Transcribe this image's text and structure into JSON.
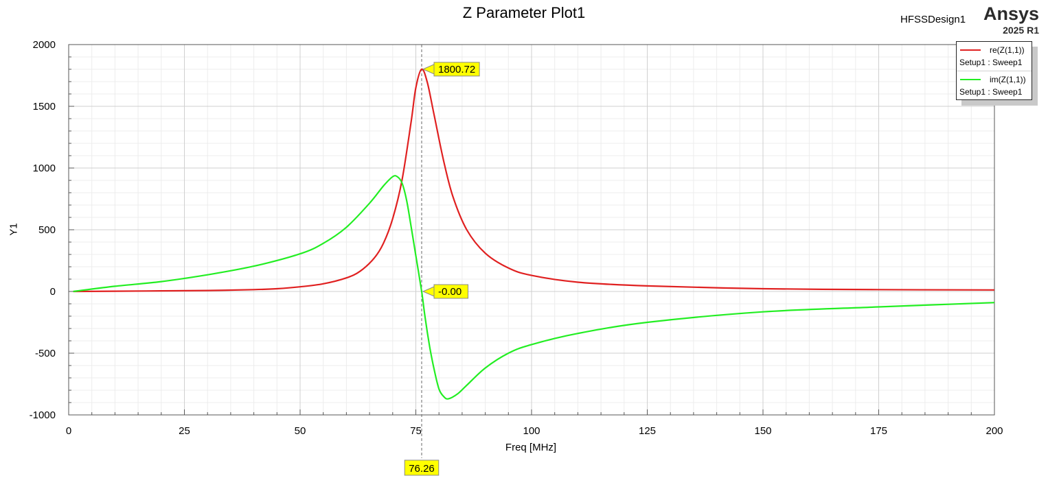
{
  "header": {
    "title": "Z Parameter Plot1",
    "design_name": "HFSSDesign1",
    "brand": "Ansys",
    "version": "2025 R1"
  },
  "legend": [
    {
      "name": "re(Z(1,1))",
      "sweep": "Setup1 : Sweep1",
      "color": "#e02020"
    },
    {
      "name": "im(Z(1,1))",
      "sweep": "Setup1 : Sweep1",
      "color": "#22ee22"
    }
  ],
  "chart_data": {
    "type": "line",
    "title": "Z Parameter Plot1",
    "xlabel": "Freq [MHz]",
    "ylabel": "Y1",
    "xlim": [
      0,
      200
    ],
    "ylim": [
      -1000,
      2000
    ],
    "xticks": [
      0,
      25,
      50,
      75,
      100,
      125,
      150,
      175,
      200
    ],
    "yticks": [
      -1000,
      -500,
      0,
      500,
      1000,
      1500,
      2000
    ],
    "grid": true,
    "legend_position": "top-right",
    "series": [
      {
        "name": "re(Z(1,1))",
        "color": "#e02020",
        "x": [
          1,
          10,
          20,
          30,
          40,
          45,
          50,
          55,
          60,
          63,
          66,
          68,
          70,
          72,
          74,
          75,
          76.26,
          77.5,
          79,
          81,
          83,
          86,
          90,
          95,
          100,
          110,
          125,
          150,
          175,
          200
        ],
        "y": [
          0,
          2,
          5,
          8,
          15,
          22,
          38,
          62,
          110,
          165,
          270,
          390,
          590,
          900,
          1380,
          1650,
          1800.72,
          1690,
          1420,
          1060,
          770,
          500,
          310,
          190,
          130,
          75,
          45,
          22,
          15,
          12
        ]
      },
      {
        "name": "im(Z(1,1))",
        "color": "#22ee22",
        "x": [
          1,
          10,
          20,
          30,
          40,
          50,
          55,
          60,
          65,
          68,
          70,
          71,
          72,
          73,
          74,
          75,
          76.26,
          77,
          78,
          79,
          80,
          81,
          82,
          84,
          86,
          90,
          95,
          100,
          110,
          125,
          150,
          175,
          200
        ],
        "y": [
          0,
          42,
          80,
          135,
          205,
          305,
          390,
          520,
          715,
          855,
          930,
          930,
          880,
          740,
          520,
          290,
          0,
          -210,
          -450,
          -640,
          -790,
          -850,
          -870,
          -830,
          -760,
          -620,
          -500,
          -430,
          -340,
          -250,
          -165,
          -125,
          -90
        ]
      }
    ],
    "markers": [
      {
        "series": "re(Z(1,1))",
        "x": 76.26,
        "y": 1800.72,
        "label": "1800.72"
      },
      {
        "series": "im(Z(1,1))",
        "x": 76.26,
        "y": 0,
        "label": "-0.00"
      }
    ],
    "x_marker_label": "76.26"
  }
}
